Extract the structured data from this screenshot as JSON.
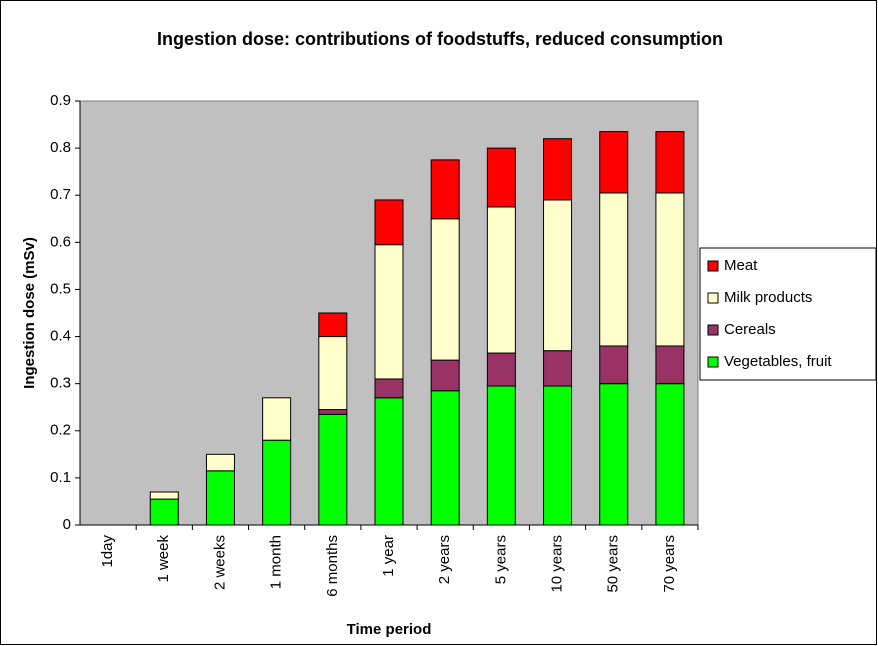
{
  "chart_data": {
    "type": "stacked_bar",
    "title": "Ingestion dose: contributions of foodstuffs, reduced consumption",
    "x_label": "Time period",
    "y_label": "Ingestion dose (mSv)",
    "categories": [
      "1day",
      "1 week",
      "2 weeks",
      "1 month",
      "6 months",
      "1 year",
      "2 years",
      "5 years",
      "10 years",
      "50 years",
      "70 years"
    ],
    "series": [
      {
        "name": "Vegetables, fruit",
        "color": "#00ff00",
        "values": [
          0,
          0.055,
          0.115,
          0.18,
          0.235,
          0.27,
          0.285,
          0.295,
          0.295,
          0.3,
          0.3
        ]
      },
      {
        "name": "Cereals",
        "color": "#993366",
        "values": [
          0,
          0,
          0,
          0,
          0.01,
          0.04,
          0.065,
          0.07,
          0.075,
          0.08,
          0.08
        ]
      },
      {
        "name": "Milk products",
        "color": "#ffffcc",
        "values": [
          0,
          0.015,
          0.035,
          0.09,
          0.155,
          0.285,
          0.3,
          0.31,
          0.32,
          0.325,
          0.325
        ]
      },
      {
        "name": "Meat",
        "color": "#ff0000",
        "values": [
          0,
          0,
          0,
          0,
          0.05,
          0.095,
          0.125,
          0.125,
          0.13,
          0.13,
          0.13
        ]
      }
    ],
    "ylim": [
      0,
      0.9
    ],
    "yticks": [
      0,
      0.1,
      0.2,
      0.3,
      0.4,
      0.5,
      0.6,
      0.7,
      0.8,
      0.9
    ],
    "grid": false,
    "plot_background": "#c0c0c0",
    "legend": "right"
  }
}
